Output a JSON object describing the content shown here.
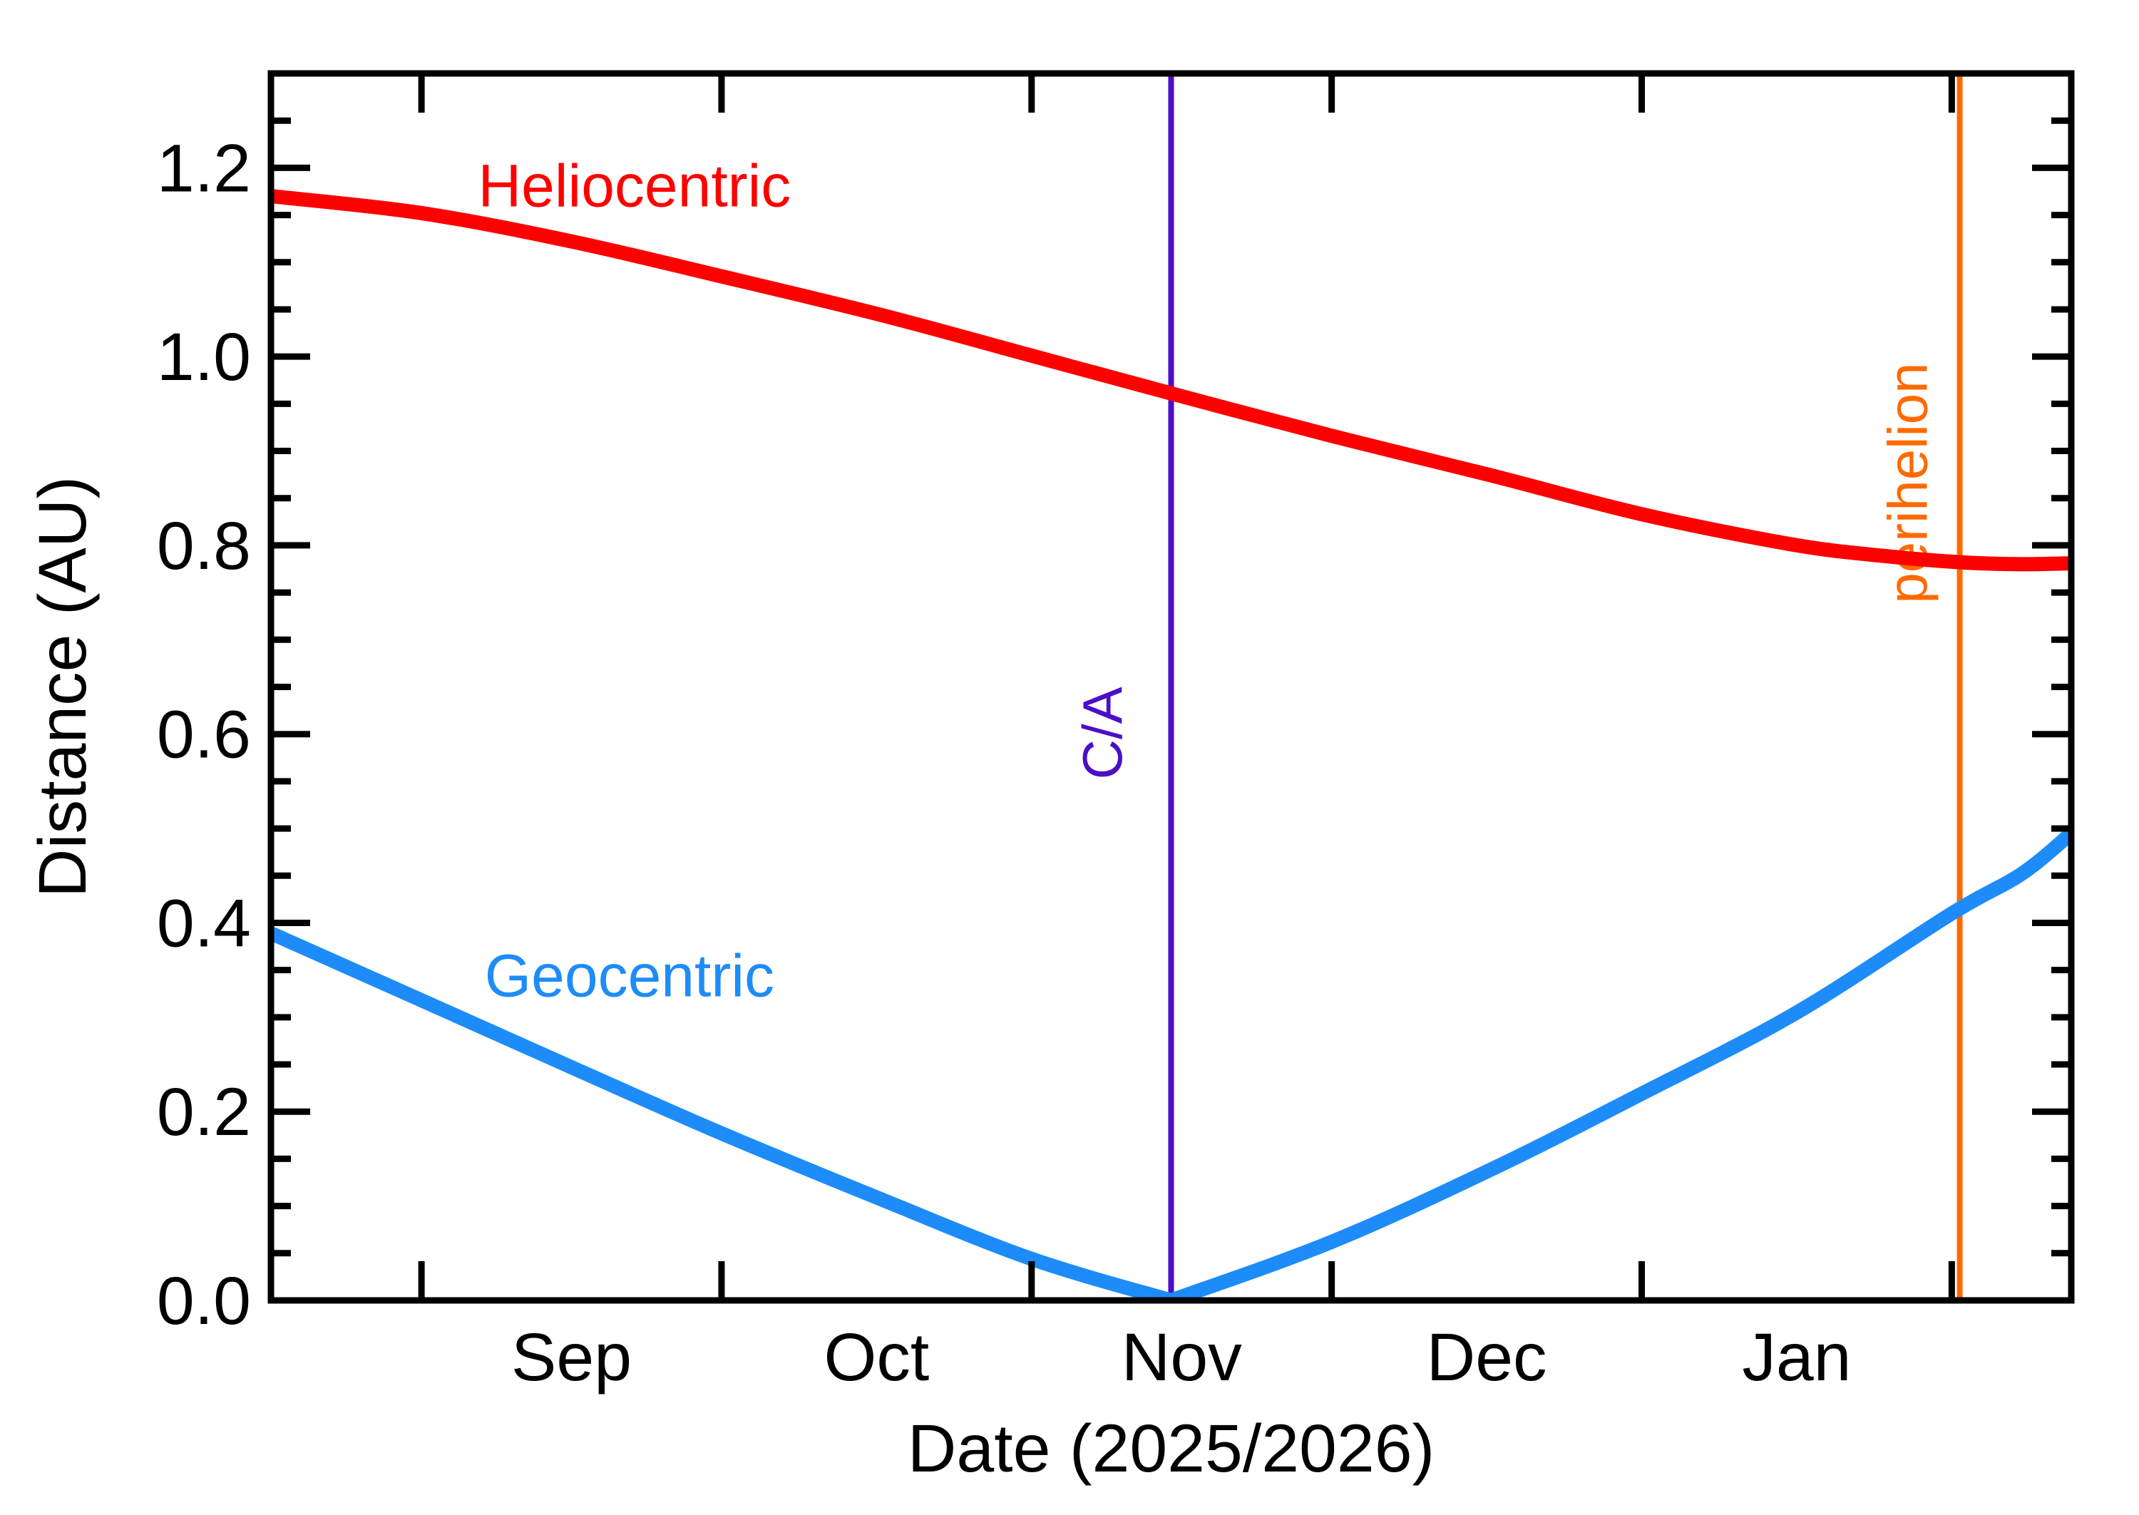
{
  "page": {
    "background": "#ffffff",
    "frame_color": "#000000"
  },
  "chart_data": {
    "type": "line",
    "title": "",
    "xlabel": "Date (2025/2026)",
    "ylabel": "Distance (AU)",
    "x_unit": "days since 2025-09-01",
    "x_range": [
      -15.05,
      164.95
    ],
    "ylim": [
      0.0,
      1.3
    ],
    "grid": false,
    "legend_position": "inline-labels",
    "y_major_ticks": [
      0.0,
      0.2,
      0.4,
      0.6,
      0.8,
      1.0,
      1.2
    ],
    "y_tick_labels": [
      "0.0",
      "0.2",
      "0.4",
      "0.6",
      "0.8",
      "1.0",
      "1.2"
    ],
    "y_minor_step": 0.05,
    "x_major_ticks": [
      0,
      30,
      61,
      91,
      122,
      153
    ],
    "x_major_tick_dates": [
      "Sep 1",
      "Oct 1",
      "Nov 1",
      "Dec 1",
      "Jan 1",
      "Feb 1"
    ],
    "month_labels": [
      {
        "label": "Sep",
        "t": 15.0
      },
      {
        "label": "Oct",
        "t": 45.5
      },
      {
        "label": "Nov",
        "t": 76.0
      },
      {
        "label": "Dec",
        "t": 106.5
      },
      {
        "label": "Jan",
        "t": 137.5
      }
    ],
    "series": [
      {
        "name": "Heliocentric",
        "color": "#ff0000",
        "stroke_width": 20,
        "label": {
          "text": "Heliocentric",
          "t": 21.3,
          "v": 1.159
        },
        "segments": [
          [
            [
              -15.05,
              1.17
            ],
            [
              0,
              1.152
            ],
            [
              15,
              1.122
            ],
            [
              30,
              1.085
            ],
            [
              46,
              1.044
            ],
            [
              61,
              1.001
            ],
            [
              76,
              0.958
            ],
            [
              91,
              0.916
            ],
            [
              107,
              0.874
            ],
            [
              122,
              0.833
            ],
            [
              137,
              0.801
            ],
            [
              146,
              0.789
            ],
            [
              154,
              0.782
            ],
            [
              160,
              0.78
            ],
            [
              164.95,
              0.781
            ]
          ]
        ]
      },
      {
        "name": "Geocentric",
        "color": "#1e8cf8",
        "stroke_width": 20,
        "label": {
          "text": "Geocentric",
          "t": 20.8,
          "v": 0.322
        },
        "segments": [
          [
            [
              -15.05,
              0.389
            ],
            [
              0,
              0.318
            ],
            [
              15,
              0.247
            ],
            [
              30,
              0.177
            ],
            [
              46,
              0.107
            ],
            [
              61,
              0.044
            ],
            [
              74.95,
              0.0
            ]
          ],
          [
            [
              74.95,
              0.0
            ],
            [
              91,
              0.062
            ],
            [
              107,
              0.139
            ],
            [
              122,
              0.219
            ],
            [
              137.5,
              0.305
            ],
            [
              153,
              0.41
            ],
            [
              160,
              0.452
            ],
            [
              164.95,
              0.495
            ]
          ]
        ]
      }
    ],
    "events": [
      {
        "name": "ca-line",
        "label": "C/A",
        "color": "#4b0fc8",
        "t": 74.95,
        "label_t": 70.0,
        "label_v": 0.601,
        "stroke_width": 8
      },
      {
        "name": "perihelion-line",
        "label": "perihelion",
        "color": "#ff6a00",
        "t": 153.8,
        "label_t": 150.5,
        "label_v": 0.866,
        "stroke_width": 8
      }
    ],
    "annotations_rotation_deg": -90,
    "tick_style": {
      "major_len": 55,
      "minor_len": 28,
      "width": 9,
      "inward": true
    },
    "font_sizes": {
      "tick": 95,
      "axis_label": 95,
      "series_label": 84,
      "event_label": 78
    }
  }
}
